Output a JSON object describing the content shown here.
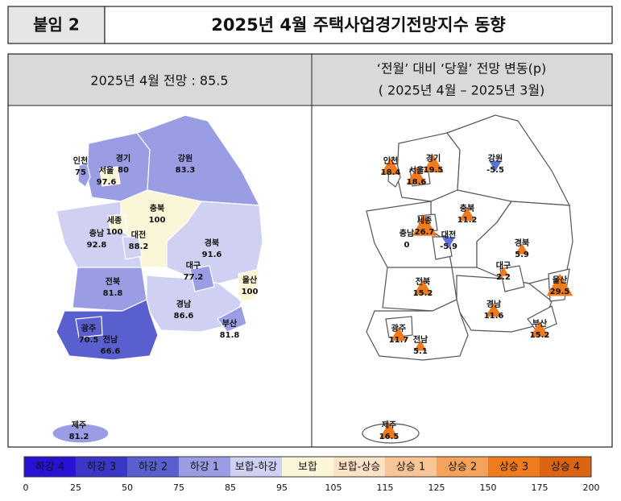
{
  "header": {
    "tag": "붙임 2",
    "title": "2025년 4월 주택사업경기전망지수 동향"
  },
  "left": {
    "heading": "2025년 4월 전망 : 85.5"
  },
  "right": {
    "heading_lines": [
      "‘전월’ 대비 ‘당월’ 전망 변동(p)",
      "( 2025년 4월 –  2025년 3월)"
    ],
    "up_color": "#f07b1e",
    "down_color": "#5b72d6"
  },
  "regions": [
    {
      "name": "인천",
      "outlook": 75,
      "change": 18.4
    },
    {
      "name": "서울",
      "outlook": 97.6,
      "change": 18.6
    },
    {
      "name": "경기",
      "outlook": 80,
      "change": 19.5
    },
    {
      "name": "강원",
      "outlook": 83.3,
      "change": -5.5
    },
    {
      "name": "충북",
      "outlook": 100,
      "change": 11.2
    },
    {
      "name": "세종",
      "outlook": 100,
      "change": 26.7
    },
    {
      "name": "대전",
      "outlook": 88.2,
      "change": -5.9
    },
    {
      "name": "충남",
      "outlook": 92.8,
      "change": 0
    },
    {
      "name": "경북",
      "outlook": 91.6,
      "change": 5.9
    },
    {
      "name": "대구",
      "outlook": 77.2,
      "change": 2.2
    },
    {
      "name": "울산",
      "outlook": 100,
      "change": 29.5
    },
    {
      "name": "전북",
      "outlook": 81.8,
      "change": 15.2
    },
    {
      "name": "경남",
      "outlook": 86.6,
      "change": 11.6
    },
    {
      "name": "부산",
      "outlook": 81.8,
      "change": 15.2
    },
    {
      "name": "광주",
      "outlook": 70.5,
      "change": 11.7
    },
    {
      "name": "전남",
      "outlook": 66.6,
      "change": 5.1
    },
    {
      "name": "제주",
      "outlook": 81.2,
      "change": 16.5
    }
  ],
  "legend": {
    "items": [
      {
        "label": "하강 4",
        "color": "#2a12d4"
      },
      {
        "label": "하강 3",
        "color": "#3a36c8"
      },
      {
        "label": "하강 2",
        "color": "#5a5fd0"
      },
      {
        "label": "하강 1",
        "color": "#9a9ce4"
      },
      {
        "label": "보합-하강",
        "color": "#cfd0f2"
      },
      {
        "label": "보합",
        "color": "#fcf6d8"
      },
      {
        "label": "보합-상승",
        "color": "#fde3c6"
      },
      {
        "label": "상승 1",
        "color": "#f9c596"
      },
      {
        "label": "상승 2",
        "color": "#f5a25a"
      },
      {
        "label": "상승 3",
        "color": "#f07b1e"
      },
      {
        "label": "상승 4",
        "color": "#dc6412"
      }
    ],
    "ticks": [
      0,
      25,
      50,
      75,
      85,
      95,
      105,
      115,
      125,
      150,
      175,
      200
    ]
  }
}
